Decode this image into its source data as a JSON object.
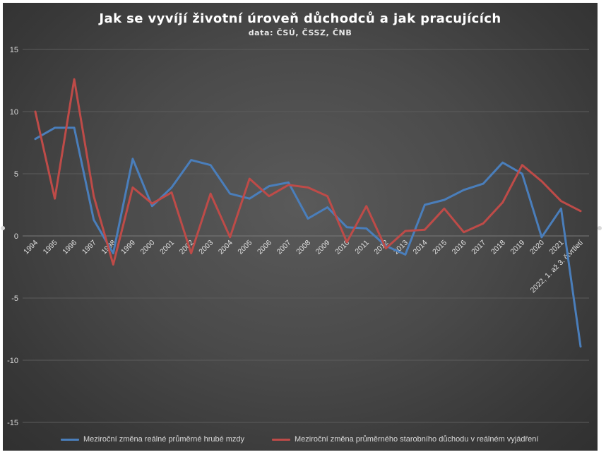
{
  "chart_data": {
    "type": "line",
    "title": "Jak se vyvíjí životní úroveň důchodců a jak pracujících",
    "subtitle": "data: ČSÚ, ČSSZ, ČNB",
    "categories": [
      "1994",
      "1995",
      "1996",
      "1997",
      "1998",
      "1999",
      "2000",
      "2001",
      "2002",
      "2003",
      "2004",
      "2005",
      "2006",
      "2007",
      "2008",
      "2009",
      "2010",
      "2011",
      "2012",
      "2013",
      "2014",
      "2015",
      "2016",
      "2017",
      "2018",
      "2019",
      "2020",
      "2021",
      "2022, 1. až 3. čtvrtletí"
    ],
    "ylim": [
      -15,
      15
    ],
    "yticks": [
      15,
      10,
      5,
      0,
      -5,
      -10,
      -15
    ],
    "grid": true,
    "legend_position": "bottom",
    "series": [
      {
        "name": "Meziroční změna reálné průměrné hrubé mzdy",
        "color": "#4a7ebb",
        "values": [
          7.8,
          8.7,
          8.7,
          1.3,
          -1.4,
          6.2,
          2.4,
          3.9,
          6.1,
          5.7,
          3.4,
          3.0,
          4.0,
          4.3,
          1.4,
          2.3,
          0.7,
          0.6,
          -0.8,
          -1.5,
          2.5,
          2.9,
          3.7,
          4.2,
          5.9,
          5.0,
          -0.1,
          2.2,
          -8.9
        ]
      },
      {
        "name": "Meziroční změna průměrného starobního důchodu v reálném vyjádření",
        "color": "#be4b48",
        "values": [
          10.0,
          3.0,
          12.6,
          3.2,
          -2.3,
          3.9,
          2.6,
          3.5,
          -1.4,
          3.4,
          -0.1,
          4.6,
          3.2,
          4.1,
          3.9,
          3.2,
          -0.5,
          2.4,
          -1.0,
          0.4,
          0.5,
          2.2,
          0.3,
          1.0,
          2.7,
          5.7,
          4.4,
          2.8,
          2.0
        ]
      }
    ]
  }
}
